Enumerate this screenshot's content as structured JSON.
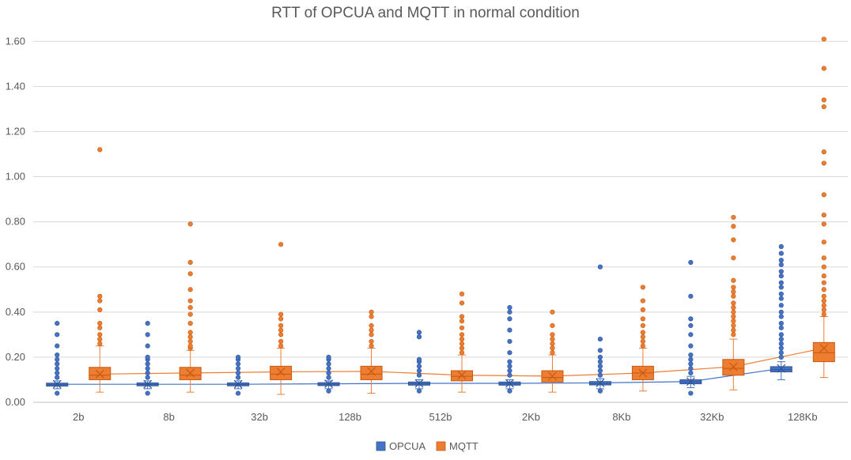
{
  "chart_data": {
    "type": "box",
    "title": "RTT of OPCUA and MQTT in normal condition",
    "xlabel": "",
    "ylabel": "",
    "ylim": [
      0,
      1.65
    ],
    "yticks": [
      "0.00",
      "0.20",
      "0.40",
      "0.60",
      "0.80",
      "1.00",
      "1.20",
      "1.40",
      "1.60"
    ],
    "grid": true,
    "legend_position": "bottom",
    "categories": [
      "2b",
      "8b",
      "32b",
      "128b",
      "512b",
      "2Kb",
      "8Kb",
      "32Kb",
      "128Kb"
    ],
    "series": [
      {
        "name": "OPCUA",
        "color": "#4472C4",
        "boxes": [
          {
            "min": 0.06,
            "q1": 0.072,
            "median": 0.078,
            "q3": 0.085,
            "max": 0.095,
            "mean": 0.08,
            "outliers": [
              0.04,
              0.11,
              0.13,
              0.15,
              0.17,
              0.19,
              0.21,
              0.25,
              0.3,
              0.35
            ]
          },
          {
            "min": 0.06,
            "q1": 0.073,
            "median": 0.079,
            "q3": 0.086,
            "max": 0.095,
            "mean": 0.08,
            "outliers": [
              0.04,
              0.11,
              0.13,
              0.15,
              0.17,
              0.19,
              0.2,
              0.25,
              0.3,
              0.35
            ]
          },
          {
            "min": 0.06,
            "q1": 0.073,
            "median": 0.079,
            "q3": 0.086,
            "max": 0.095,
            "mean": 0.08,
            "outliers": [
              0.04,
              0.11,
              0.13,
              0.15,
              0.17,
              0.19,
              0.2
            ]
          },
          {
            "min": 0.06,
            "q1": 0.074,
            "median": 0.08,
            "q3": 0.087,
            "max": 0.095,
            "mean": 0.082,
            "outliers": [
              0.05,
              0.11,
              0.13,
              0.15,
              0.17,
              0.19,
              0.2
            ]
          },
          {
            "min": 0.06,
            "q1": 0.076,
            "median": 0.082,
            "q3": 0.09,
            "max": 0.1,
            "mean": 0.084,
            "outliers": [
              0.05,
              0.12,
              0.14,
              0.16,
              0.18,
              0.19,
              0.29,
              0.31
            ]
          },
          {
            "min": 0.06,
            "q1": 0.076,
            "median": 0.082,
            "q3": 0.09,
            "max": 0.1,
            "mean": 0.084,
            "outliers": [
              0.05,
              0.12,
              0.14,
              0.16,
              0.18,
              0.22,
              0.27,
              0.32,
              0.37,
              0.4,
              0.42
            ]
          },
          {
            "min": 0.06,
            "q1": 0.077,
            "median": 0.083,
            "q3": 0.092,
            "max": 0.105,
            "mean": 0.086,
            "outliers": [
              0.05,
              0.12,
              0.14,
              0.16,
              0.18,
              0.2,
              0.23,
              0.28,
              0.6
            ]
          },
          {
            "min": 0.065,
            "q1": 0.082,
            "median": 0.09,
            "q3": 0.1,
            "max": 0.115,
            "mean": 0.092,
            "outliers": [
              0.04,
              0.13,
              0.15,
              0.17,
              0.19,
              0.21,
              0.25,
              0.3,
              0.34,
              0.37,
              0.47,
              0.62
            ]
          },
          {
            "min": 0.1,
            "q1": 0.135,
            "median": 0.145,
            "q3": 0.158,
            "max": 0.18,
            "mean": 0.15,
            "outliers": [
              0.2,
              0.22,
              0.24,
              0.26,
              0.28,
              0.3,
              0.33,
              0.35,
              0.38,
              0.4,
              0.43,
              0.46,
              0.48,
              0.51,
              0.53,
              0.56,
              0.58,
              0.61,
              0.63,
              0.66,
              0.69
            ]
          }
        ]
      },
      {
        "name": "MQTT",
        "color": "#ED7D31",
        "boxes": [
          {
            "min": 0.045,
            "q1": 0.1,
            "median": 0.12,
            "q3": 0.155,
            "max": 0.25,
            "mean": 0.125,
            "outliers": [
              0.26,
              0.28,
              0.3,
              0.33,
              0.35,
              0.41,
              0.45,
              0.47,
              1.12
            ]
          },
          {
            "min": 0.045,
            "q1": 0.1,
            "median": 0.12,
            "q3": 0.155,
            "max": 0.23,
            "mean": 0.13,
            "outliers": [
              0.24,
              0.25,
              0.27,
              0.29,
              0.31,
              0.35,
              0.39,
              0.42,
              0.45,
              0.5,
              0.57,
              0.62,
              0.79
            ]
          },
          {
            "min": 0.035,
            "q1": 0.1,
            "median": 0.125,
            "q3": 0.16,
            "max": 0.24,
            "mean": 0.135,
            "outliers": [
              0.25,
              0.27,
              0.3,
              0.32,
              0.34,
              0.37,
              0.39,
              0.7
            ]
          },
          {
            "min": 0.04,
            "q1": 0.1,
            "median": 0.125,
            "q3": 0.16,
            "max": 0.24,
            "mean": 0.137,
            "outliers": [
              0.25,
              0.27,
              0.3,
              0.32,
              0.34,
              0.38,
              0.4
            ]
          },
          {
            "min": 0.045,
            "q1": 0.095,
            "median": 0.115,
            "q3": 0.14,
            "max": 0.21,
            "mean": 0.12,
            "outliers": [
              0.22,
              0.24,
              0.26,
              0.28,
              0.3,
              0.33,
              0.36,
              0.38,
              0.44,
              0.48
            ]
          },
          {
            "min": 0.045,
            "q1": 0.09,
            "median": 0.11,
            "q3": 0.14,
            "max": 0.21,
            "mean": 0.116,
            "outliers": [
              0.22,
              0.24,
              0.26,
              0.28,
              0.3,
              0.34,
              0.4
            ]
          },
          {
            "min": 0.05,
            "q1": 0.1,
            "median": 0.13,
            "q3": 0.16,
            "max": 0.24,
            "mean": 0.13,
            "outliers": [
              0.25,
              0.27,
              0.29,
              0.31,
              0.34,
              0.37,
              0.41,
              0.45,
              0.51
            ]
          },
          {
            "min": 0.055,
            "q1": 0.12,
            "median": 0.15,
            "q3": 0.19,
            "max": 0.28,
            "mean": 0.158,
            "outliers": [
              0.3,
              0.32,
              0.34,
              0.36,
              0.38,
              0.4,
              0.42,
              0.44,
              0.47,
              0.49,
              0.51,
              0.54,
              0.64,
              0.72,
              0.78,
              0.82
            ]
          },
          {
            "min": 0.11,
            "q1": 0.18,
            "median": 0.22,
            "q3": 0.265,
            "max": 0.38,
            "mean": 0.24,
            "outliers": [
              0.39,
              0.41,
              0.43,
              0.45,
              0.47,
              0.5,
              0.53,
              0.56,
              0.6,
              0.64,
              0.71,
              0.79,
              0.83,
              0.92,
              1.06,
              1.11,
              1.31,
              1.34,
              1.48,
              1.61
            ]
          }
        ]
      }
    ]
  }
}
